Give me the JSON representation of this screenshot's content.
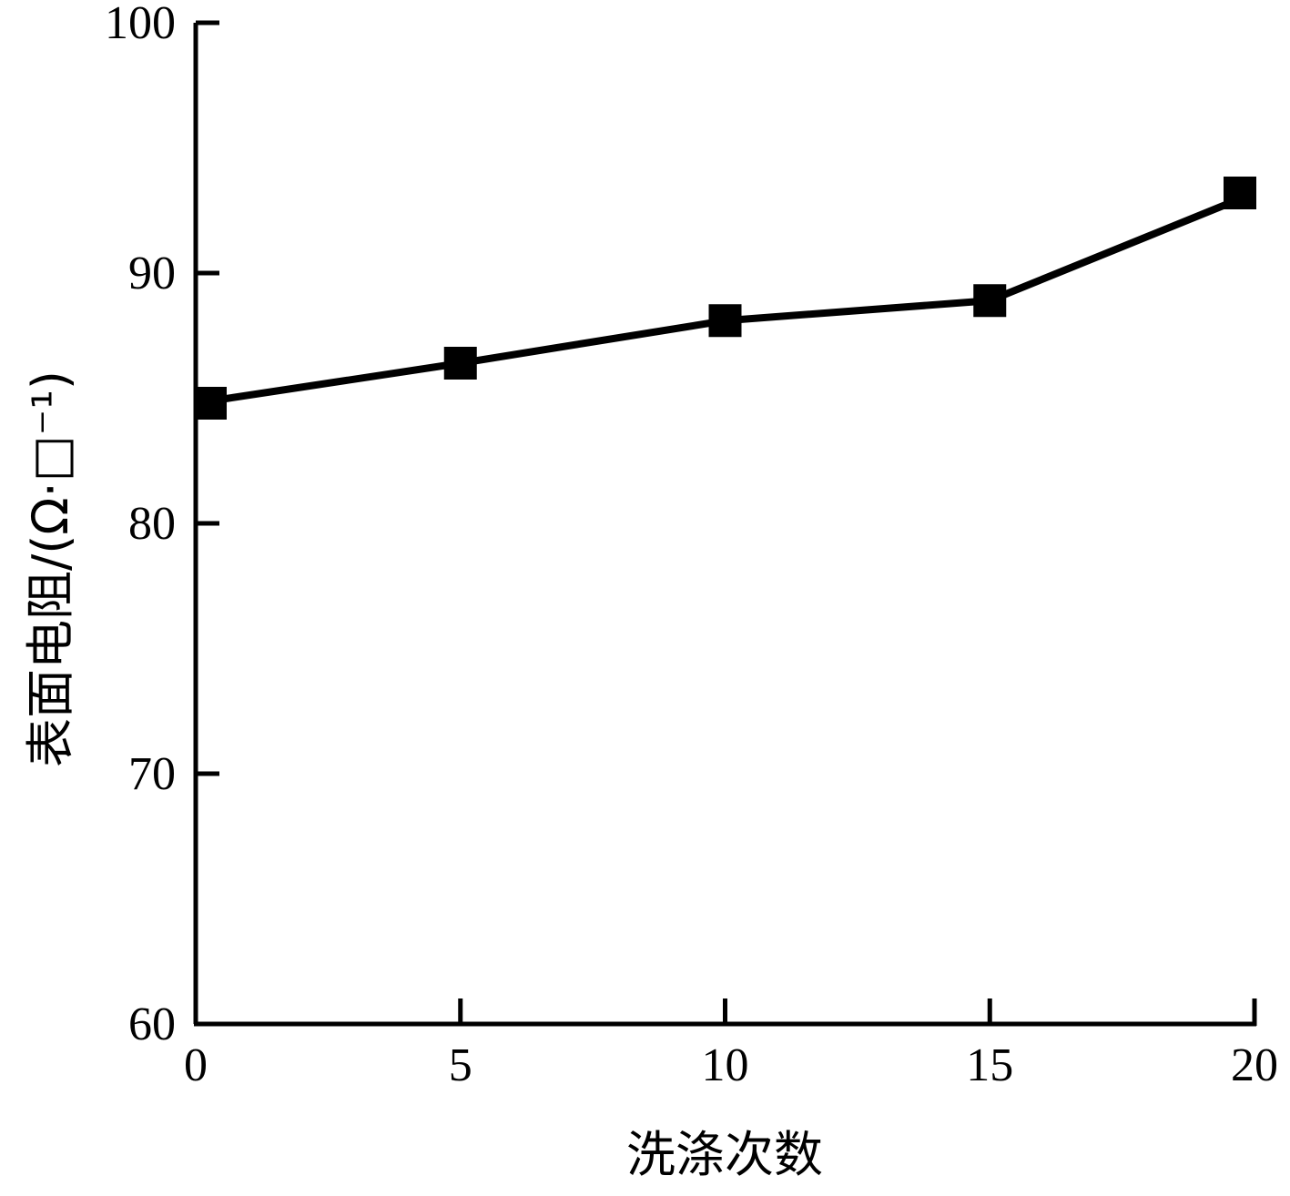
{
  "chart_data": {
    "type": "line",
    "title": "",
    "xlabel": "洗涤次数",
    "ylabel": "表面电阻/(Ω·□⁻¹)",
    "xlim": [
      0,
      20
    ],
    "ylim": [
      60,
      100
    ],
    "xticks": [
      0,
      5,
      10,
      15,
      20
    ],
    "yticks": [
      60,
      70,
      80,
      90,
      100
    ],
    "grid": false,
    "legend": "none",
    "series": [
      {
        "x": [
          0,
          5,
          10,
          15,
          20
        ],
        "y": [
          84.8,
          86.4,
          88.1,
          88.9,
          93.2
        ],
        "marker": "square",
        "color": "#000000"
      }
    ]
  }
}
